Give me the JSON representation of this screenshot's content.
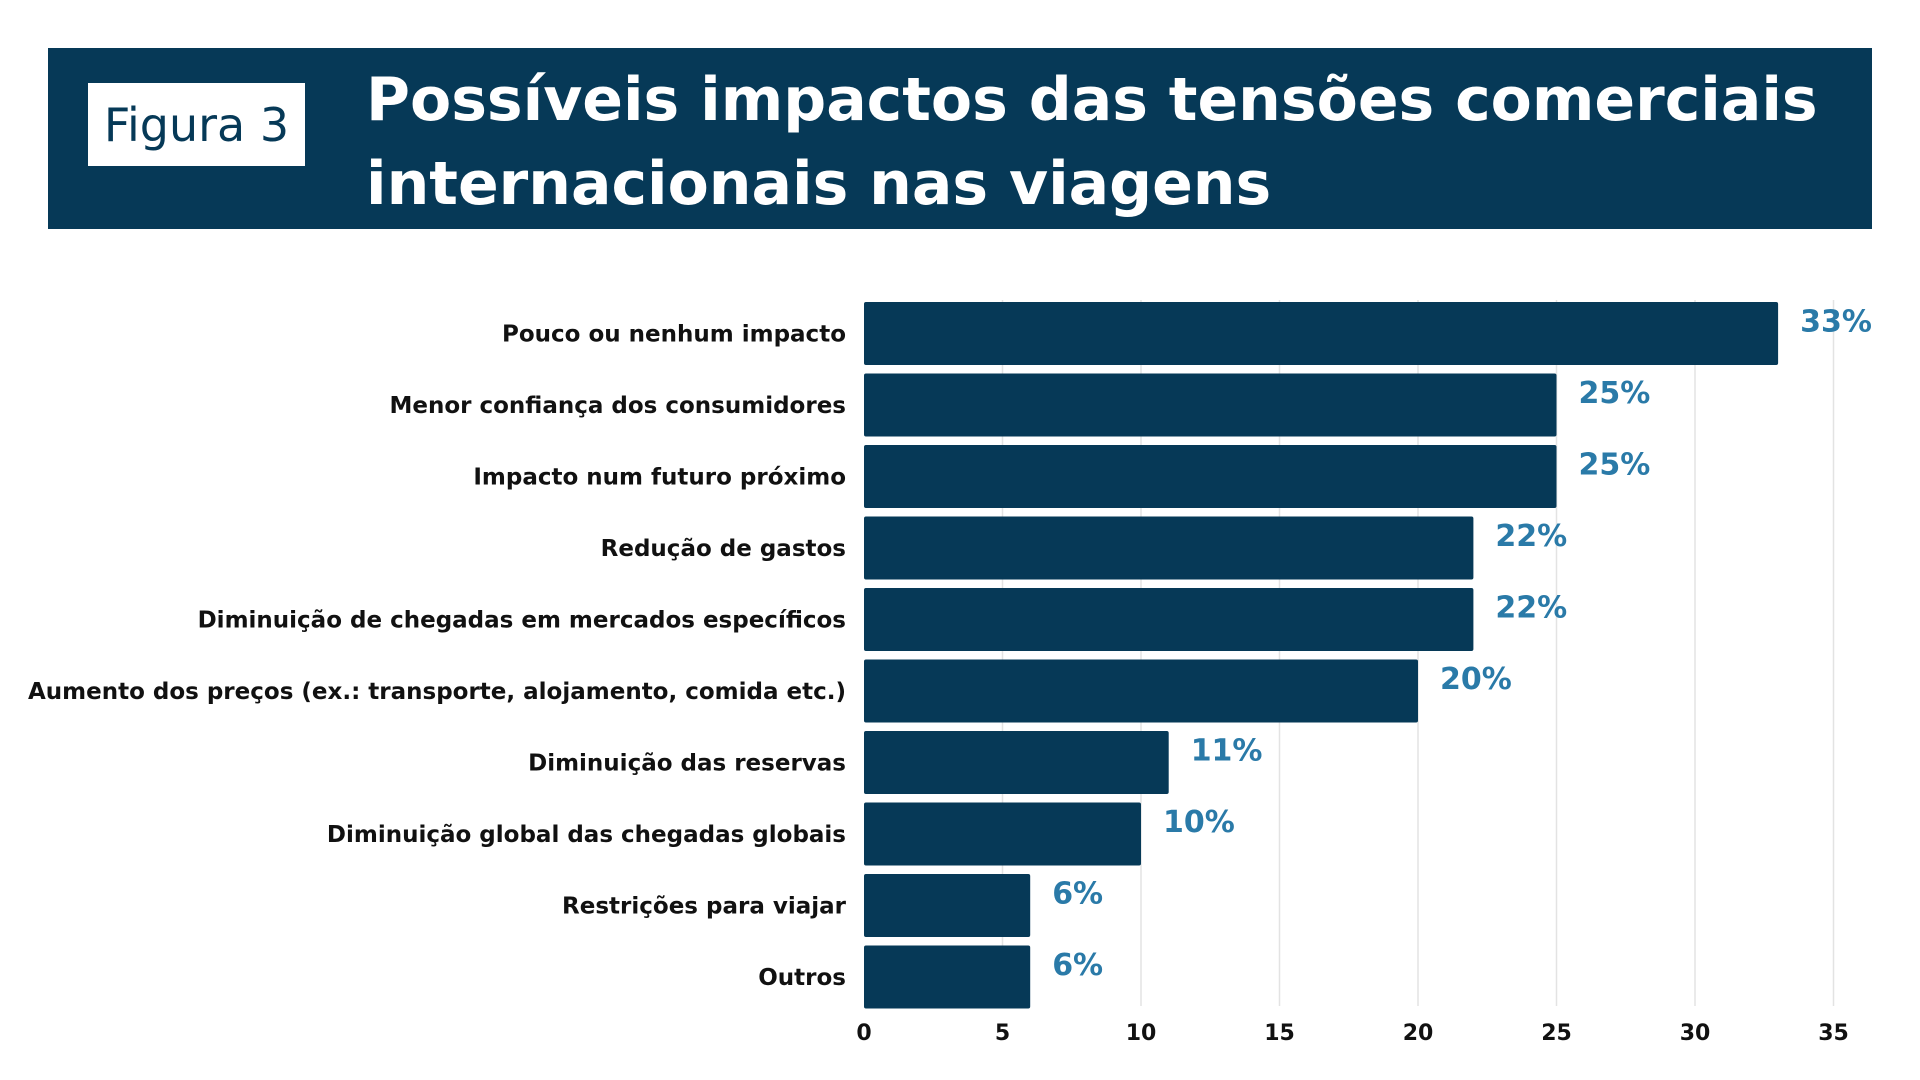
{
  "header": {
    "figure_label": "Figura 3",
    "title": "Possíveis impactos das tensões comerciais internacionais nas viagens"
  },
  "colors": {
    "header_bg": "#063957",
    "bar": "#063957",
    "value_label": "#2a7aa8"
  },
  "chart_data": {
    "type": "bar",
    "orientation": "horizontal",
    "title": "Possíveis impactos das tensões comerciais internacionais nas viagens",
    "xlabel": "",
    "ylabel": "",
    "categories": [
      "Pouco ou nenhum impacto",
      "Menor confiança dos consumidores",
      "Impacto num futuro próximo",
      "Redução de gastos",
      "Diminuição de chegadas em mercados específicos",
      "Aumento dos preços (ex.: transporte, alojamento, comida etc.)",
      "Diminuição das reservas",
      "Diminuição global das chegadas globais",
      "Restrições para viajar",
      "Outros"
    ],
    "values": [
      33,
      25,
      25,
      22,
      22,
      20,
      11,
      10,
      6,
      6
    ],
    "value_labels": [
      "33%",
      "25%",
      "25%",
      "22%",
      "22%",
      "20%",
      "11%",
      "10%",
      "6%",
      "6%"
    ],
    "xlim": [
      0,
      35
    ],
    "xticks": [
      0,
      5,
      10,
      15,
      20,
      25,
      30,
      35
    ],
    "grid": true,
    "legend": "none"
  }
}
